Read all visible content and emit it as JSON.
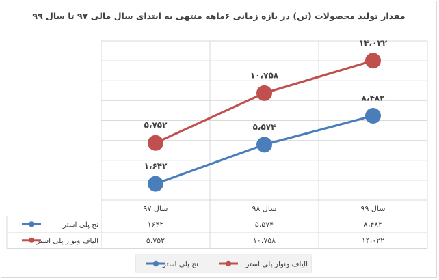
{
  "chart_data": {
    "type": "line",
    "title": "مقدار تولید محصولات (تن) در بازه زمانی ۶ماهه منتهی به ابتدای سال مالی ۹۷ تا سال ۹۹",
    "categories": [
      "سال ۹۷",
      "سال ۹۸",
      "سال ۹۹"
    ],
    "series": [
      {
        "name": "نخ پلی استر",
        "color": "#4a7ebb",
        "values": [
          1642,
          5574,
          8482
        ],
        "labels": [
          "۱،۶۴۲",
          "۵،۵۷۴",
          "۸،۴۸۲"
        ],
        "table_values": [
          "۱۶۴۲",
          "۵،۵۷۴",
          "۸،۴۸۲"
        ]
      },
      {
        "name": "الیاف ونوار پلی استر",
        "color": "#c0504d",
        "values": [
          5752,
          10758,
          14022
        ],
        "labels": [
          "۵،۷۵۲",
          "۱۰،۷۵۸",
          "۱۴،۰۲۲"
        ],
        "table_values": [
          "۵،۷۵۲",
          "۱۰،۷۵۸",
          "۱۴،۰۲۲"
        ]
      }
    ],
    "ylim": [
      0,
      16000
    ],
    "grid": true,
    "legend": "bottom",
    "data_table": true
  }
}
